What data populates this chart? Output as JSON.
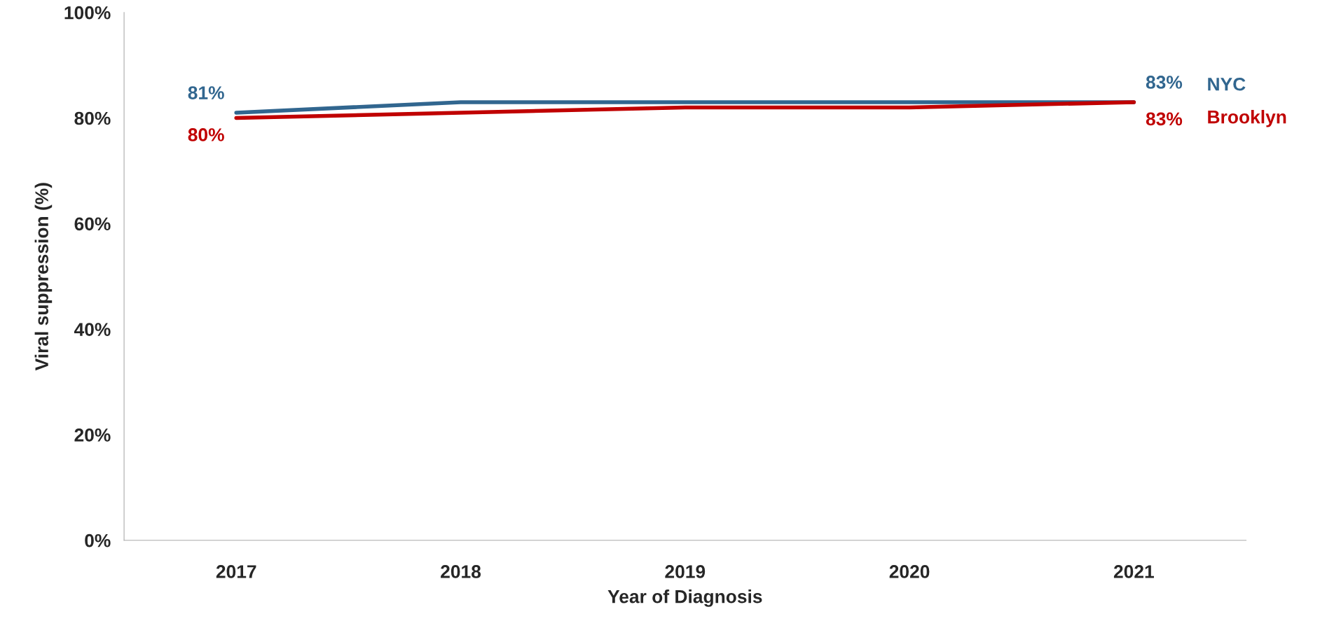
{
  "chart_data": {
    "type": "line",
    "xlabel": "Year of Diagnosis",
    "ylabel": "Viral suppression (%)",
    "categories": [
      "2017",
      "2018",
      "2019",
      "2020",
      "2021"
    ],
    "series": [
      {
        "name": "NYC",
        "color": "#31668f",
        "values": [
          81,
          83,
          83,
          83,
          83
        ],
        "value_labels": [
          "81%",
          null,
          null,
          null,
          "83%"
        ]
      },
      {
        "name": "Brooklyn",
        "color": "#c00000",
        "values": [
          80,
          81,
          82,
          82,
          83
        ],
        "value_labels": [
          "80%",
          null,
          null,
          null,
          "83%"
        ]
      }
    ],
    "ylim": [
      0,
      100
    ],
    "yticks": [
      {
        "value": 0,
        "label": "0%"
      },
      {
        "value": 20,
        "label": "20%"
      },
      {
        "value": 40,
        "label": "40%"
      },
      {
        "value": 60,
        "label": "60%"
      },
      {
        "value": 80,
        "label": "80%"
      },
      {
        "value": 100,
        "label": "100%"
      }
    ],
    "grid": false,
    "marker": "none",
    "line_style": "solid"
  }
}
